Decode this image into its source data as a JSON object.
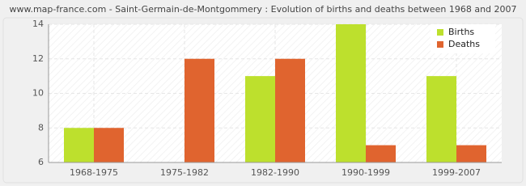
{
  "chart_data": {
    "type": "bar",
    "title": "www.map-france.com - Saint-Germain-de-Montgommery : Evolution of births and deaths between 1968 and 2007",
    "categories": [
      "1968-1975",
      "1975-1982",
      "1982-1990",
      "1990-1999",
      "1999-2007"
    ],
    "series": [
      {
        "name": "Births",
        "color": "#bde02d",
        "values": [
          8,
          6,
          11,
          14,
          11
        ]
      },
      {
        "name": "Deaths",
        "color": "#e0642f",
        "values": [
          8,
          12,
          12,
          7,
          7
        ]
      }
    ],
    "ylim": [
      6,
      14
    ],
    "yticks": [
      6,
      8,
      10,
      12,
      14
    ],
    "grid": true,
    "legend": "top-right"
  }
}
